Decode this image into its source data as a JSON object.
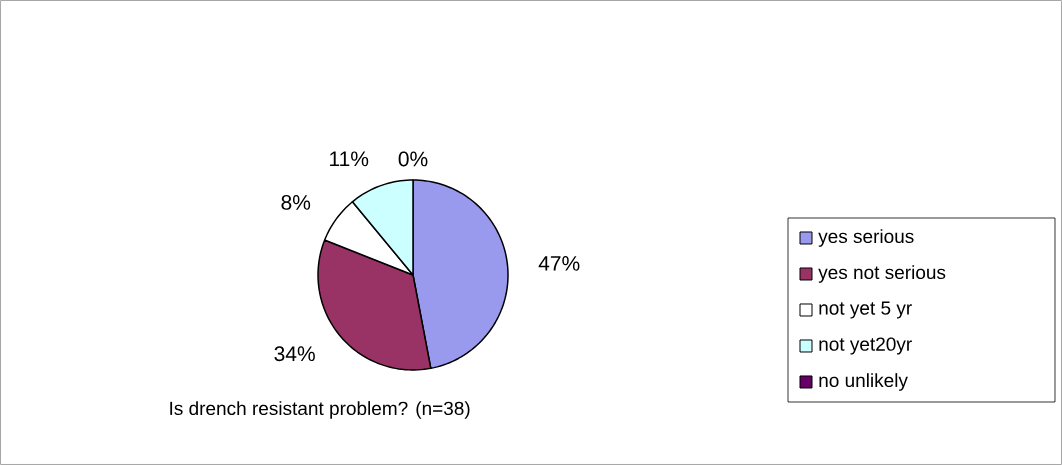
{
  "chart_data": {
    "type": "pie",
    "title": "Is drench resistant problem? (n=38)",
    "categories": [
      "yes serious",
      "yes not serious",
      "not yet 5 yr",
      "not yet20yr",
      "no unlikely"
    ],
    "values": [
      47,
      34,
      8,
      11,
      0
    ],
    "value_labels": [
      "47%",
      "34%",
      "8%",
      "11%",
      "0%"
    ],
    "colors": [
      "#9999ee",
      "#993366",
      "#ffffff",
      "#ccffff",
      "#660066"
    ],
    "legend": "right"
  }
}
